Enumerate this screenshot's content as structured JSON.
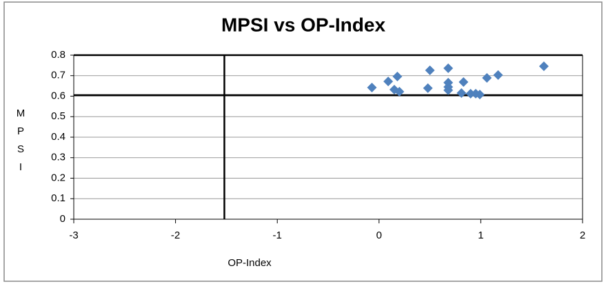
{
  "chart_data": {
    "type": "scatter",
    "title": "MPSI vs OP-Index",
    "xlabel": "OP-Index",
    "ylabel": "MPSI",
    "x": [
      -0.07,
      0.09,
      0.18,
      0.15,
      0.2,
      0.48,
      0.5,
      0.68,
      0.68,
      0.68,
      0.68,
      0.83,
      0.81,
      0.9,
      0.95,
      0.99,
      1.06,
      1.17,
      1.62
    ],
    "values": [
      0.642,
      0.672,
      0.696,
      0.632,
      0.622,
      0.639,
      0.726,
      0.736,
      0.666,
      0.645,
      0.629,
      0.669,
      0.615,
      0.612,
      0.612,
      0.608,
      0.689,
      0.703,
      0.746
    ],
    "color": "#4f81bd",
    "xlim": [
      -3,
      2
    ],
    "xticks": [
      -3,
      -2,
      -1,
      0,
      1,
      2
    ],
    "ylim": [
      0,
      0.8
    ],
    "yticks": [
      0,
      0.1,
      0.2,
      0.3,
      0.4,
      0.5,
      0.6,
      0.7,
      0.8
    ],
    "grid": true,
    "vline": -1.52,
    "hline": 0.605
  }
}
